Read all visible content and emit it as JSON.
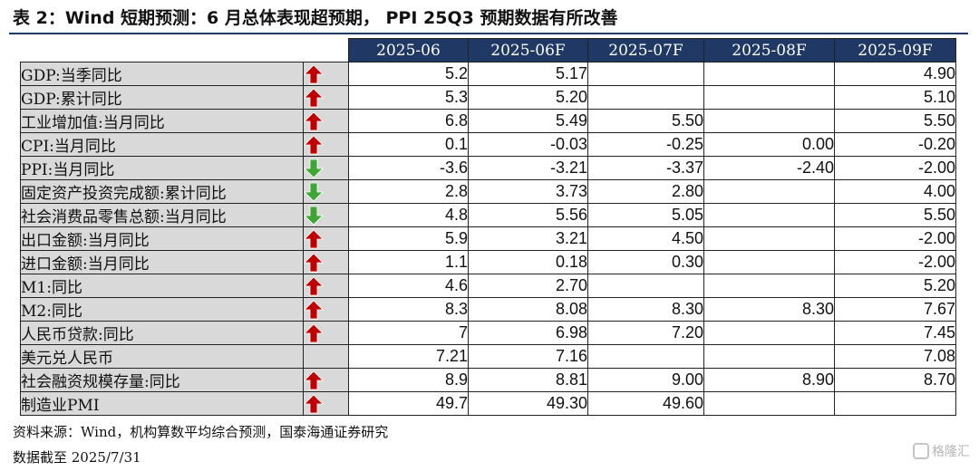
{
  "title": "表 2：Wind 短期预测：6 月总体表现超预期， PPI 25Q3 预期数据有所改善",
  "colors": {
    "header_bg": "#1f3864",
    "label_bg": "#d9d9d9",
    "up_arrow": "#c00000",
    "down_arrow": "#3fa535"
  },
  "chart_data": {
    "type": "table",
    "columns": [
      "2025-06",
      "2025-06F",
      "2025-07F",
      "2025-08F",
      "2025-09F"
    ],
    "rows": [
      {
        "label": "GDP:当季同比",
        "direction": "up",
        "values": [
          "5.2",
          "5.17",
          "",
          "",
          "4.90"
        ]
      },
      {
        "label": "GDP:累计同比",
        "direction": "up",
        "values": [
          "5.3",
          "5.20",
          "",
          "",
          "5.10"
        ]
      },
      {
        "label": "工业增加值:当月同比",
        "direction": "up",
        "values": [
          "6.8",
          "5.49",
          "5.50",
          "",
          "5.50"
        ]
      },
      {
        "label": "CPI:当月同比",
        "direction": "up",
        "values": [
          "0.1",
          "-0.03",
          "-0.25",
          "0.00",
          "-0.20"
        ]
      },
      {
        "label": "PPI:当月同比",
        "direction": "down",
        "values": [
          "-3.6",
          "-3.21",
          "-3.37",
          "-2.40",
          "-2.00"
        ]
      },
      {
        "label": "固定资产投资完成额:累计同比",
        "direction": "down",
        "values": [
          "2.8",
          "3.73",
          "2.80",
          "",
          "4.00"
        ]
      },
      {
        "label": "社会消费品零售总额:当月同比",
        "direction": "down",
        "values": [
          "4.8",
          "5.56",
          "5.05",
          "",
          "5.50"
        ]
      },
      {
        "label": "出口金额:当月同比",
        "direction": "up",
        "values": [
          "5.9",
          "3.21",
          "4.50",
          "",
          "-2.00"
        ]
      },
      {
        "label": "进口金额:当月同比",
        "direction": "up",
        "values": [
          "1.1",
          "0.18",
          "0.30",
          "",
          "-2.00"
        ]
      },
      {
        "label": "M1:同比",
        "direction": "up",
        "values": [
          "4.6",
          "2.70",
          "",
          "",
          "5.20"
        ]
      },
      {
        "label": "M2:同比",
        "direction": "up",
        "values": [
          "8.3",
          "8.08",
          "8.30",
          "8.30",
          "7.67"
        ]
      },
      {
        "label": "人民币贷款:同比",
        "direction": "up",
        "values": [
          "7",
          "6.98",
          "7.20",
          "",
          "7.45"
        ]
      },
      {
        "label": "美元兑人民币",
        "direction": "none",
        "values": [
          "7.21",
          "7.16",
          "",
          "",
          "7.08"
        ]
      },
      {
        "label": "社会融资规模存量:同比",
        "direction": "up",
        "values": [
          "8.9",
          "8.81",
          "9.00",
          "8.90",
          "8.70"
        ]
      },
      {
        "label": "制造业PMI",
        "direction": "up",
        "values": [
          "49.7",
          "49.30",
          "49.60",
          "",
          ""
        ]
      }
    ]
  },
  "footer": {
    "source": "资料来源：Wind，机构算数平均综合预测，国泰海通证券研究",
    "date": "数据截至 2025/7/31"
  },
  "watermark": {
    "icon": "gelonghui-logo-icon",
    "text": "格隆汇"
  }
}
